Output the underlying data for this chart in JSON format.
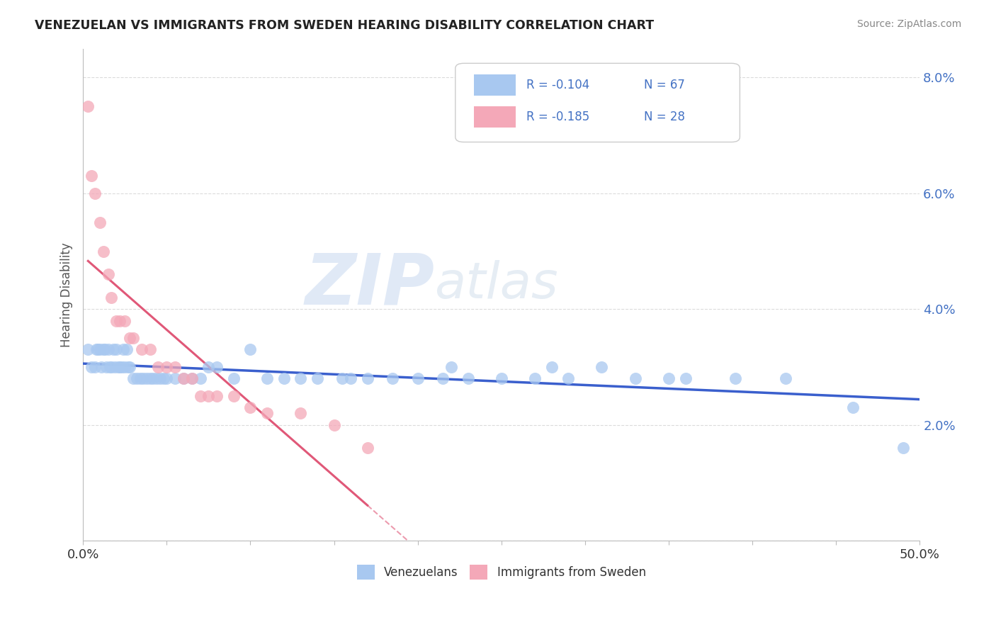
{
  "title": "VENEZUELAN VS IMMIGRANTS FROM SWEDEN HEARING DISABILITY CORRELATION CHART",
  "source": "Source: ZipAtlas.com",
  "ylabel": "Hearing Disability",
  "y_ticks": [
    0.0,
    0.02,
    0.04,
    0.06,
    0.08
  ],
  "y_tick_labels": [
    "",
    "2.0%",
    "4.0%",
    "6.0%",
    "8.0%"
  ],
  "xlim": [
    0.0,
    0.5
  ],
  "ylim": [
    0.0,
    0.085
  ],
  "watermark_zip": "ZIP",
  "watermark_atlas": "atlas",
  "legend_r1": "R = -0.104",
  "legend_n1": "N = 67",
  "legend_r2": "R = -0.185",
  "legend_n2": "N = 28",
  "color_venezuelan": "#A8C8F0",
  "color_sweden": "#F4A8B8",
  "color_trend_venezuelan": "#3A5FCD",
  "color_trend_sweden": "#E05878",
  "venezuelan_x": [
    0.003,
    0.005,
    0.007,
    0.008,
    0.009,
    0.01,
    0.011,
    0.012,
    0.013,
    0.014,
    0.015,
    0.016,
    0.017,
    0.018,
    0.019,
    0.02,
    0.021,
    0.022,
    0.023,
    0.024,
    0.025,
    0.026,
    0.027,
    0.028,
    0.03,
    0.032,
    0.034,
    0.036,
    0.038,
    0.04,
    0.042,
    0.044,
    0.046,
    0.048,
    0.05,
    0.055,
    0.06,
    0.065,
    0.07,
    0.075,
    0.08,
    0.09,
    0.1,
    0.11,
    0.12,
    0.13,
    0.14,
    0.155,
    0.17,
    0.185,
    0.2,
    0.215,
    0.23,
    0.25,
    0.27,
    0.29,
    0.31,
    0.33,
    0.36,
    0.39,
    0.42,
    0.46,
    0.49,
    0.16,
    0.22,
    0.28,
    0.35
  ],
  "venezuelan_y": [
    0.033,
    0.03,
    0.03,
    0.033,
    0.033,
    0.033,
    0.03,
    0.033,
    0.033,
    0.03,
    0.033,
    0.03,
    0.03,
    0.033,
    0.03,
    0.033,
    0.03,
    0.03,
    0.03,
    0.033,
    0.03,
    0.033,
    0.03,
    0.03,
    0.028,
    0.028,
    0.028,
    0.028,
    0.028,
    0.028,
    0.028,
    0.028,
    0.028,
    0.028,
    0.028,
    0.028,
    0.028,
    0.028,
    0.028,
    0.03,
    0.03,
    0.028,
    0.033,
    0.028,
    0.028,
    0.028,
    0.028,
    0.028,
    0.028,
    0.028,
    0.028,
    0.028,
    0.028,
    0.028,
    0.028,
    0.028,
    0.03,
    0.028,
    0.028,
    0.028,
    0.028,
    0.023,
    0.016,
    0.028,
    0.03,
    0.03,
    0.028
  ],
  "sweden_x": [
    0.003,
    0.005,
    0.007,
    0.01,
    0.012,
    0.015,
    0.017,
    0.02,
    0.022,
    0.025,
    0.028,
    0.03,
    0.035,
    0.04,
    0.045,
    0.05,
    0.055,
    0.06,
    0.065,
    0.07,
    0.075,
    0.08,
    0.09,
    0.1,
    0.11,
    0.13,
    0.15,
    0.17
  ],
  "sweden_y": [
    0.075,
    0.063,
    0.06,
    0.055,
    0.05,
    0.046,
    0.042,
    0.038,
    0.038,
    0.038,
    0.035,
    0.035,
    0.033,
    0.033,
    0.03,
    0.03,
    0.03,
    0.028,
    0.028,
    0.025,
    0.025,
    0.025,
    0.025,
    0.023,
    0.022,
    0.022,
    0.02,
    0.016
  ],
  "background_color": "#FFFFFF",
  "grid_color": "#CCCCCC"
}
